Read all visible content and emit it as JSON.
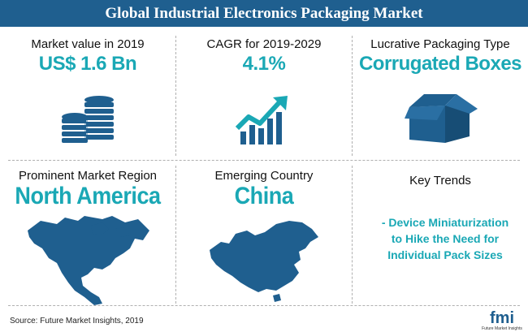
{
  "header": {
    "title": "Global Industrial Electronics Packaging Market"
  },
  "cards": {
    "market_value": {
      "label": "Market value in 2019",
      "value": "US$ 1.6 Bn",
      "icon": "coins-stack-icon"
    },
    "cagr": {
      "label": "CAGR for 2019-2029",
      "value": "4.1%",
      "icon": "growth-chart-icon"
    },
    "packaging": {
      "label": "Lucrative Packaging Type",
      "value": "Corrugated Boxes",
      "icon": "open-box-icon"
    },
    "region": {
      "label": "Prominent Market Region",
      "value": "North America",
      "icon": "north-america-map-icon"
    },
    "country": {
      "label": "Emerging Country",
      "value": "China",
      "icon": "china-map-icon"
    },
    "trends": {
      "label": "Key Trends",
      "lines": [
        "- Device Miniaturization",
        "to Hike the Need for",
        "Individual Pack Sizes"
      ]
    }
  },
  "footer": {
    "source": "Source: Future Market Insights, 2019"
  },
  "logo": {
    "text": "fmi",
    "subtext": "Future Market Insights"
  },
  "colors": {
    "banner": "#1f5f8f",
    "accent": "#1aa8b5",
    "icon": "#1f5f8f"
  }
}
